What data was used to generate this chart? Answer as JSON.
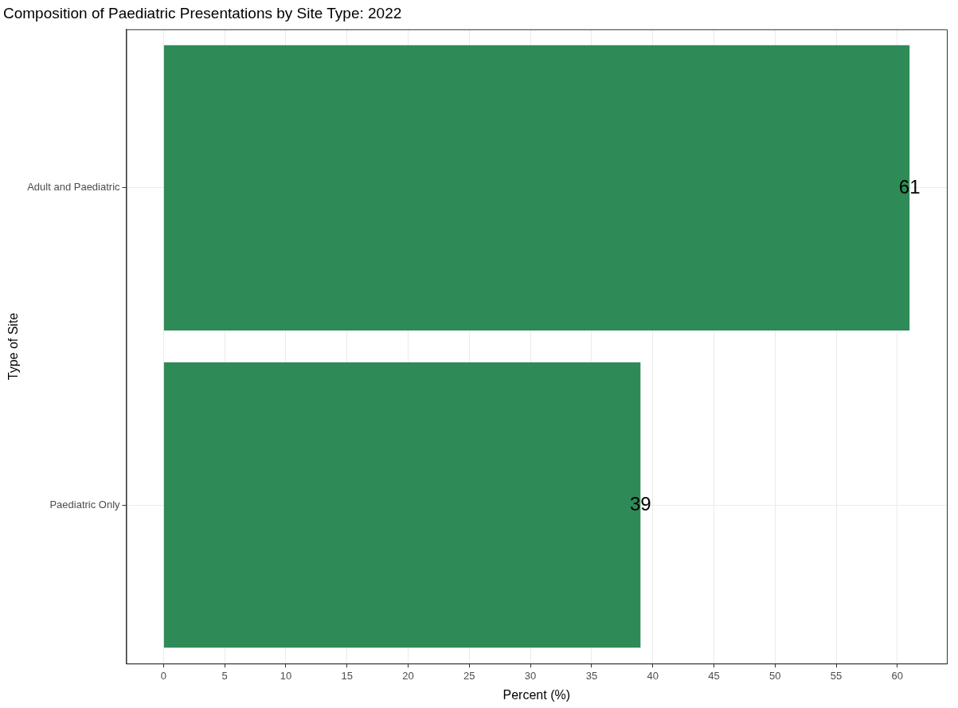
{
  "chart_data": {
    "type": "bar",
    "orientation": "horizontal",
    "title": "Composition of Paediatric Presentations by Site Type: 2022",
    "xlabel": "Percent (%)",
    "ylabel": "Type of Site",
    "categories": [
      "Adult and Paediatric",
      "Paediatric Only"
    ],
    "values": [
      61,
      39
    ],
    "color": "#2e8b57",
    "xlim": [
      -3.05,
      64.05
    ],
    "xticks": [
      0,
      5,
      10,
      15,
      20,
      25,
      30,
      35,
      40,
      45,
      50,
      55,
      60
    ],
    "grid": true,
    "data_labels": true,
    "legend": false
  }
}
